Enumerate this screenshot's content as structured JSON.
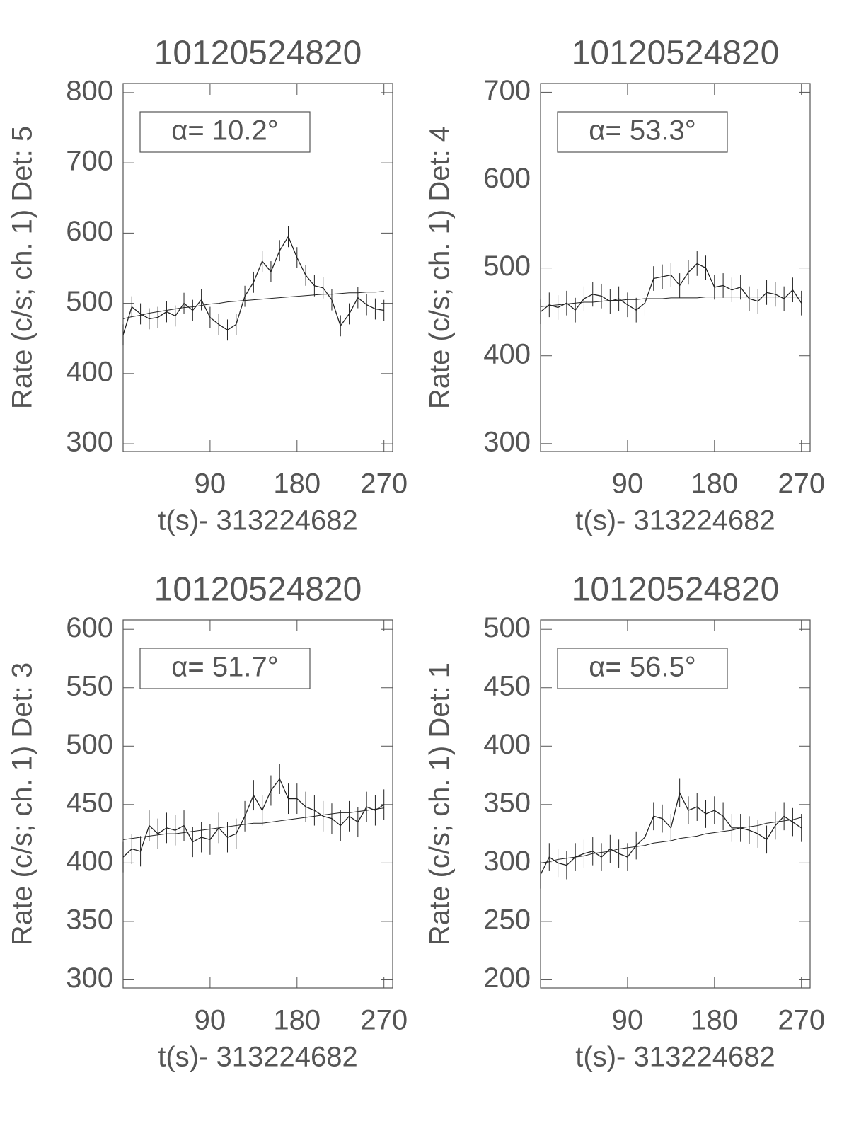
{
  "chart_data": [
    {
      "type": "line",
      "title": "10120524820",
      "ylabel": "Rate (c/s; ch. 1) Det: 5",
      "xlabel": "t(s)- 313224682",
      "annotation": "α= 10.2°",
      "x": [
        0,
        9,
        18,
        27,
        36,
        45,
        54,
        63,
        72,
        81,
        90,
        99,
        108,
        117,
        126,
        135,
        144,
        153,
        162,
        171,
        180,
        189,
        198,
        207,
        216,
        225,
        234,
        243,
        252,
        261,
        270
      ],
      "values": [
        455,
        495,
        485,
        478,
        480,
        488,
        482,
        500,
        490,
        505,
        480,
        470,
        462,
        470,
        510,
        530,
        560,
        545,
        575,
        595,
        565,
        540,
        525,
        522,
        505,
        468,
        485,
        508,
        498,
        492,
        490
      ],
      "error": 15,
      "fit": [
        478,
        481,
        483,
        486,
        488,
        490,
        492,
        494,
        495,
        497,
        499,
        500,
        502,
        503,
        504,
        505,
        506,
        507,
        508,
        509,
        510,
        511,
        512,
        513,
        513,
        514,
        515,
        515,
        516,
        516,
        517
      ],
      "xlim": [
        0,
        279
      ],
      "xticks": [
        90,
        180,
        270
      ],
      "ylim": [
        289,
        813
      ],
      "yticks": [
        300,
        400,
        500,
        600,
        700,
        800
      ],
      "color": "#222222"
    },
    {
      "type": "line",
      "title": "10120524820",
      "ylabel": "Rate (c/s; ch. 1) Det: 4",
      "xlabel": "t(s)- 313224682",
      "annotation": "α= 53.3°",
      "x": [
        0,
        9,
        18,
        27,
        36,
        45,
        54,
        63,
        72,
        81,
        90,
        99,
        108,
        117,
        126,
        135,
        144,
        153,
        162,
        171,
        180,
        189,
        198,
        207,
        216,
        225,
        234,
        243,
        252,
        261,
        270
      ],
      "values": [
        450,
        458,
        455,
        460,
        452,
        465,
        470,
        468,
        462,
        465,
        458,
        452,
        460,
        488,
        490,
        492,
        480,
        495,
        505,
        500,
        478,
        480,
        475,
        478,
        465,
        462,
        472,
        470,
        465,
        475,
        460
      ],
      "error": 14,
      "fit": [
        456,
        457,
        458,
        459,
        460,
        461,
        461,
        462,
        463,
        463,
        464,
        464,
        465,
        465,
        465,
        466,
        466,
        466,
        466,
        467,
        467,
        467,
        467,
        467,
        467,
        467,
        467,
        467,
        467,
        467,
        467
      ],
      "xlim": [
        0,
        279
      ],
      "xticks": [
        90,
        180,
        270
      ],
      "ylim": [
        291,
        710
      ],
      "yticks": [
        300,
        400,
        500,
        600,
        700
      ],
      "color": "#222222"
    },
    {
      "type": "line",
      "title": "10120524820",
      "ylabel": "Rate (c/s; ch. 1) Det: 3",
      "xlabel": "t(s)- 313224682",
      "annotation": "α= 51.7°",
      "x": [
        0,
        9,
        18,
        27,
        36,
        45,
        54,
        63,
        72,
        81,
        90,
        99,
        108,
        117,
        126,
        135,
        144,
        153,
        162,
        171,
        180,
        189,
        198,
        207,
        216,
        225,
        234,
        243,
        252,
        261,
        270
      ],
      "values": [
        405,
        412,
        410,
        432,
        425,
        430,
        428,
        432,
        418,
        422,
        420,
        430,
        422,
        425,
        440,
        458,
        445,
        462,
        472,
        455,
        455,
        448,
        445,
        440,
        438,
        432,
        440,
        435,
        448,
        445,
        450
      ],
      "error": 13,
      "fit": [
        420,
        421,
        422,
        423,
        424,
        425,
        425,
        426,
        427,
        428,
        429,
        430,
        431,
        432,
        433,
        434,
        434,
        435,
        436,
        437,
        438,
        439,
        440,
        441,
        442,
        443,
        443,
        444,
        445,
        446,
        447
      ],
      "xlim": [
        0,
        279
      ],
      "xticks": [
        90,
        180,
        270
      ],
      "ylim": [
        293,
        608
      ],
      "yticks": [
        300,
        350,
        400,
        450,
        500,
        550,
        600
      ],
      "color": "#222222"
    },
    {
      "type": "line",
      "title": "10120524820",
      "ylabel": "Rate (c/s; ch. 1) Det: 1",
      "xlabel": "t(s)- 313224682",
      "annotation": "α= 56.5°",
      "x": [
        0,
        9,
        18,
        27,
        36,
        45,
        54,
        63,
        72,
        81,
        90,
        99,
        108,
        117,
        126,
        135,
        144,
        153,
        162,
        171,
        180,
        189,
        198,
        207,
        216,
        225,
        234,
        243,
        252,
        261,
        270
      ],
      "values": [
        290,
        305,
        300,
        298,
        305,
        308,
        310,
        305,
        312,
        308,
        305,
        315,
        322,
        340,
        338,
        330,
        360,
        345,
        348,
        342,
        345,
        340,
        330,
        330,
        328,
        325,
        320,
        332,
        340,
        335,
        330
      ],
      "error": 12,
      "fit": [
        300,
        301,
        303,
        304,
        305,
        306,
        308,
        309,
        310,
        312,
        313,
        314,
        315,
        317,
        318,
        319,
        321,
        322,
        323,
        325,
        326,
        327,
        328,
        330,
        331,
        332,
        334,
        335,
        336,
        337,
        339
      ],
      "xlim": [
        0,
        279
      ],
      "xticks": [
        90,
        180,
        270
      ],
      "ylim": [
        193,
        508
      ],
      "yticks": [
        200,
        250,
        300,
        350,
        400,
        450,
        500
      ],
      "color": "#222222"
    }
  ]
}
